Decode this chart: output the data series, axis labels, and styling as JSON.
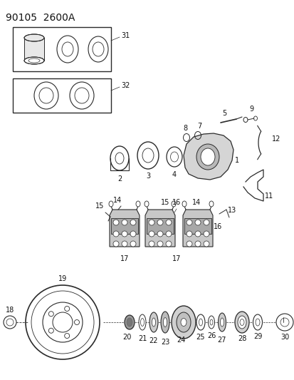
{
  "title": "90105  2600A",
  "bg_color": "#ffffff",
  "line_color": "#2a2a2a",
  "text_color": "#111111",
  "title_fontsize": 10,
  "label_fontsize": 7,
  "figsize": [
    4.14,
    5.33
  ],
  "dpi": 100
}
